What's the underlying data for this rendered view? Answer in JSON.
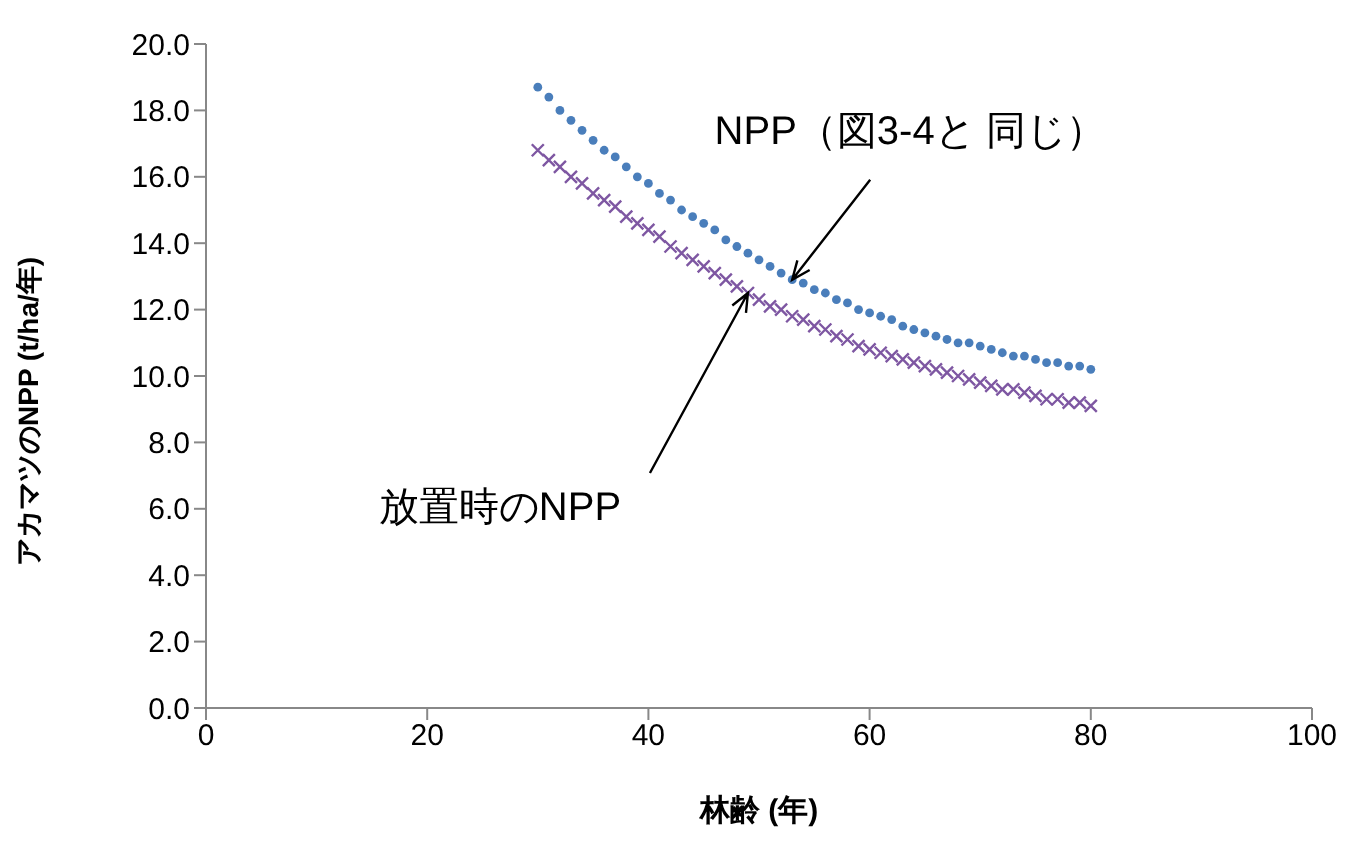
{
  "chart_data": {
    "type": "scatter",
    "xlabel": "林齢 (年)",
    "ylabel": "アカマツのNPP (t/ha/年)",
    "xlim": [
      0,
      100
    ],
    "xticks": [
      0,
      20,
      40,
      60,
      80,
      100
    ],
    "ylim": [
      0,
      20
    ],
    "yticks": [
      {
        "value": 0,
        "label": "0.0"
      },
      {
        "value": 2,
        "label": "2.0"
      },
      {
        "value": 4,
        "label": "4.0"
      },
      {
        "value": 6,
        "label": "6.0"
      },
      {
        "value": 8,
        "label": "8.0"
      },
      {
        "value": 10,
        "label": "10.0"
      },
      {
        "value": 12,
        "label": "12.0"
      },
      {
        "value": 14,
        "label": "14.0"
      },
      {
        "value": 16,
        "label": "16.0"
      },
      {
        "value": 18,
        "label": "18.0"
      },
      {
        "value": 20,
        "label": "20.0"
      }
    ],
    "grid": false,
    "legend": false,
    "x": [
      30,
      31,
      32,
      33,
      34,
      35,
      36,
      37,
      38,
      39,
      40,
      41,
      42,
      43,
      44,
      45,
      46,
      47,
      48,
      49,
      50,
      51,
      52,
      53,
      54,
      55,
      56,
      57,
      58,
      59,
      60,
      61,
      62,
      63,
      64,
      65,
      66,
      67,
      68,
      69,
      70,
      71,
      72,
      73,
      74,
      75,
      76,
      77,
      78,
      79,
      80
    ],
    "series": [
      {
        "color": "#4a7ebb",
        "marker": "circle",
        "values": [
          18.7,
          18.4,
          18.0,
          17.7,
          17.4,
          17.1,
          16.8,
          16.6,
          16.3,
          16.0,
          15.8,
          15.5,
          15.3,
          15.0,
          14.8,
          14.6,
          14.4,
          14.1,
          13.9,
          13.7,
          13.5,
          13.3,
          13.1,
          12.9,
          12.8,
          12.6,
          12.5,
          12.3,
          12.2,
          12.0,
          11.9,
          11.8,
          11.7,
          11.5,
          11.4,
          11.3,
          11.2,
          11.1,
          11.0,
          11.0,
          10.9,
          10.8,
          10.7,
          10.6,
          10.6,
          10.5,
          10.4,
          10.4,
          10.3,
          10.3,
          10.2
        ]
      },
      {
        "color": "#7e57a2",
        "marker": "cross",
        "values": [
          16.8,
          16.5,
          16.3,
          16.0,
          15.8,
          15.5,
          15.3,
          15.1,
          14.8,
          14.6,
          14.4,
          14.2,
          13.9,
          13.7,
          13.5,
          13.3,
          13.1,
          12.9,
          12.7,
          12.5,
          12.3,
          12.1,
          12.0,
          11.8,
          11.7,
          11.5,
          11.4,
          11.2,
          11.1,
          10.9,
          10.8,
          10.7,
          10.6,
          10.5,
          10.4,
          10.3,
          10.2,
          10.1,
          10.0,
          9.9,
          9.8,
          9.7,
          9.6,
          9.6,
          9.5,
          9.4,
          9.3,
          9.3,
          9.2,
          9.2,
          9.1
        ]
      }
    ],
    "annotations": [
      {
        "text": "NPP（図3-4と 同じ）",
        "x": 53,
        "y": 12.9
      },
      {
        "text": "放置時のNPP",
        "x": 49,
        "y": 12.5
      }
    ]
  }
}
